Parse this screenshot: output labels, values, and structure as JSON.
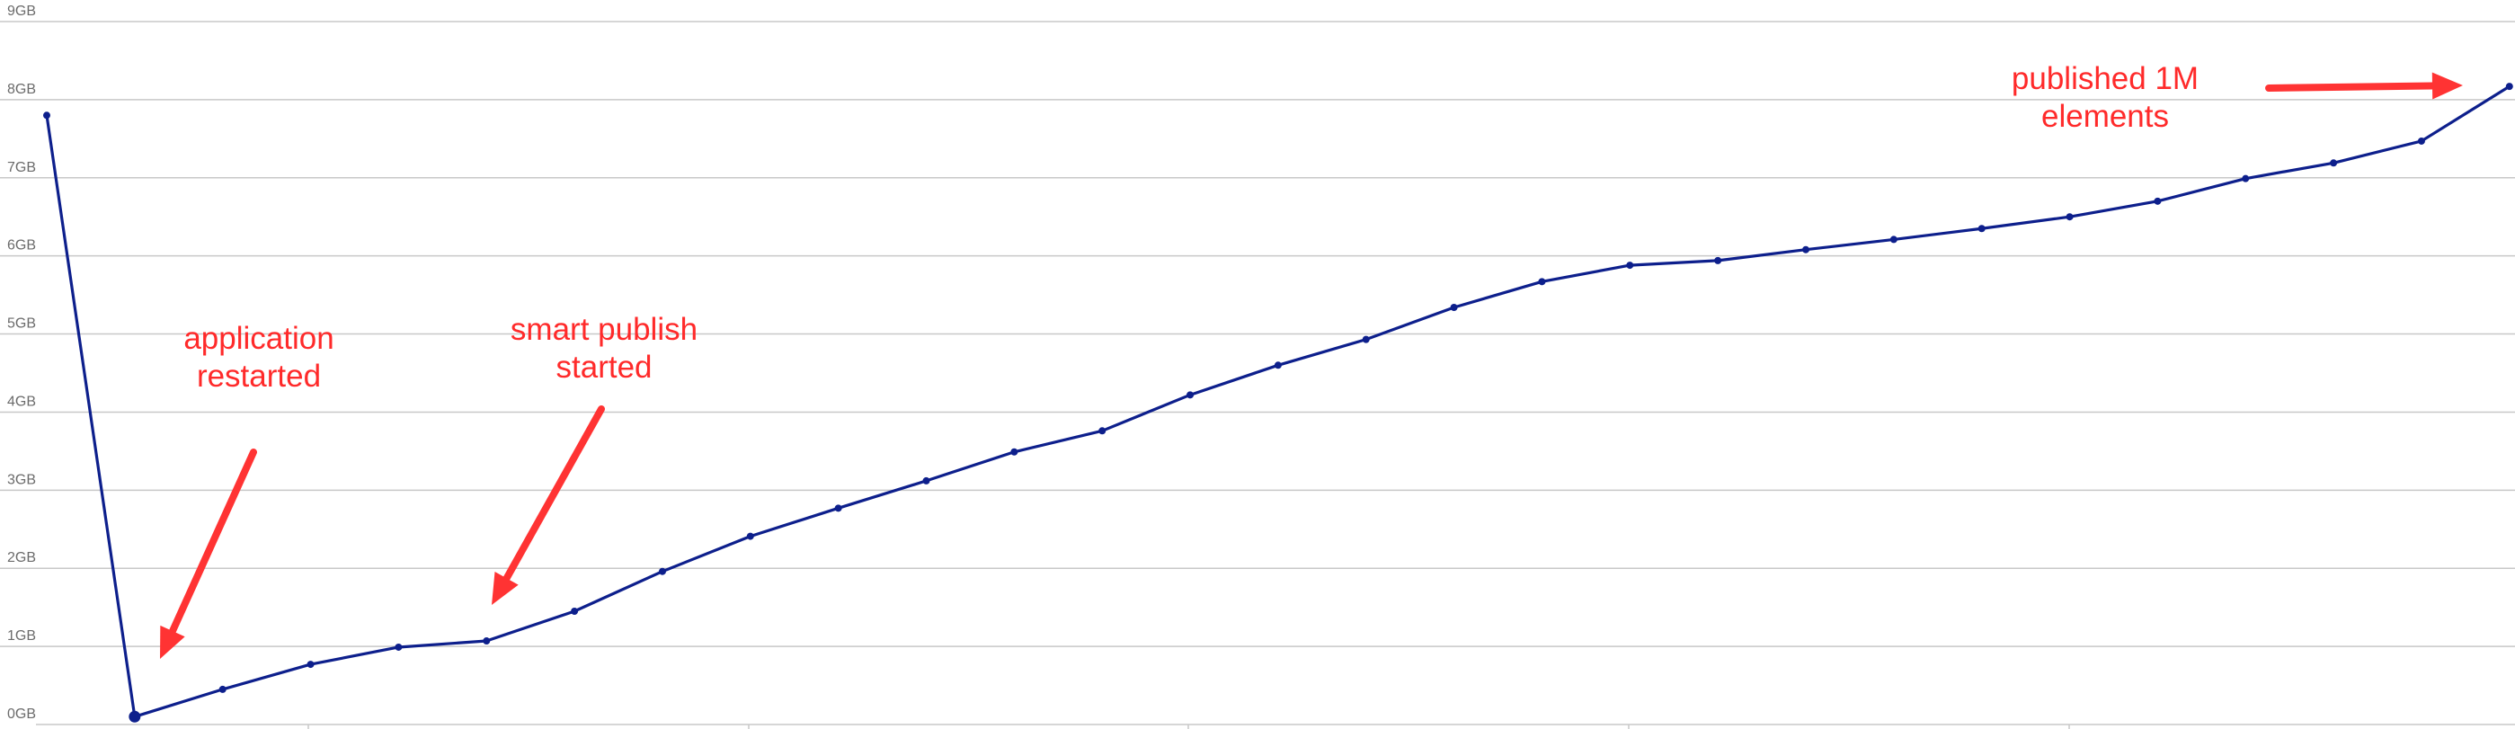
{
  "chart_data": {
    "type": "line",
    "title": "",
    "xlabel": "",
    "ylabel": "",
    "ylim": [
      0,
      9
    ],
    "yticks": [
      "0GB",
      "1GB",
      "2GB",
      "3GB",
      "4GB",
      "5GB",
      "6GB",
      "7GB",
      "8GB",
      "9GB"
    ],
    "grid": true,
    "line_color": "#0d1f8c",
    "annotation_color": "#ff3333",
    "series": [
      {
        "values": [
          7.8,
          0.1,
          0.45,
          0.77,
          0.99,
          1.07,
          1.45,
          1.96,
          2.41,
          2.77,
          3.12,
          3.49,
          3.76,
          4.22,
          4.6,
          4.93,
          5.34,
          5.67,
          5.88,
          5.94,
          6.08,
          6.21,
          6.35,
          6.5,
          6.7,
          6.99,
          7.19,
          7.47,
          8.17
        ]
      }
    ],
    "annotations": [
      {
        "lines": [
          "application",
          "restarted"
        ],
        "target_index": 1
      },
      {
        "lines": [
          "smart publish",
          "started"
        ],
        "target_index": 5
      },
      {
        "lines": [
          "published 1M",
          "elements"
        ],
        "target_index": 28
      }
    ]
  }
}
